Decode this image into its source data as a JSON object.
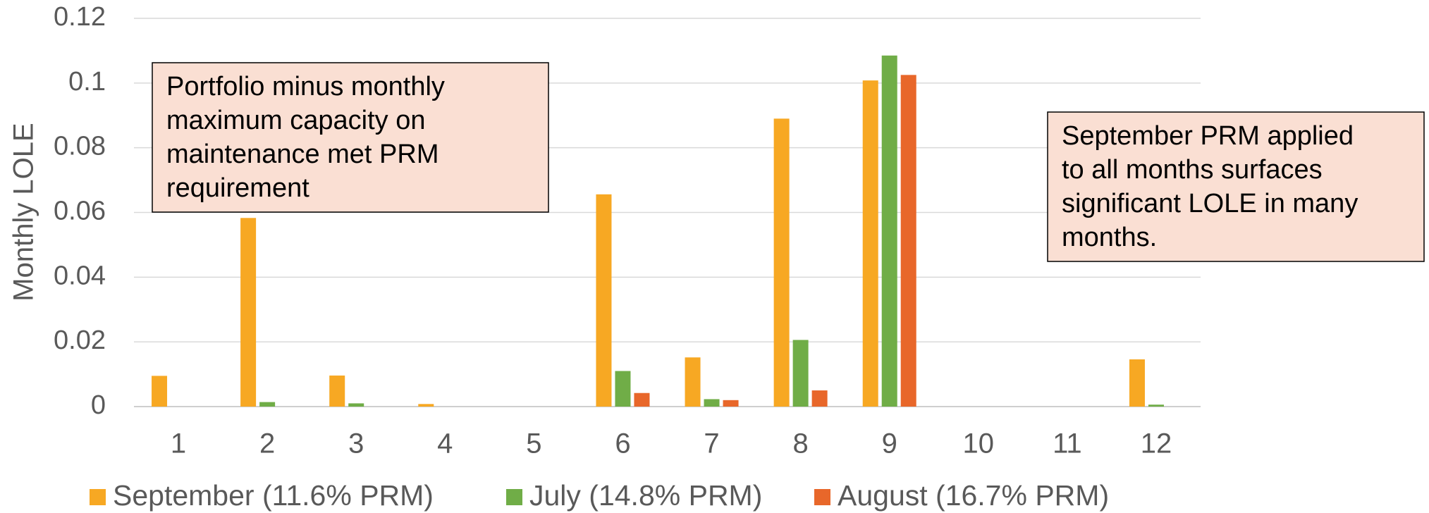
{
  "chart_data": {
    "type": "bar",
    "y_label": "Monthly LOLE",
    "categories": [
      "1",
      "2",
      "3",
      "4",
      "5",
      "6",
      "7",
      "8",
      "9",
      "10",
      "11",
      "12"
    ],
    "series": [
      {
        "name": "September (11.6% PRM)",
        "color": "#f7a823",
        "values": [
          0.0095,
          0.0583,
          0.0096,
          0.0008,
          0,
          0.0656,
          0.0152,
          0.089,
          0.1008,
          0,
          0,
          0.0146
        ]
      },
      {
        "name": "July (14.8% PRM)",
        "color": "#70ad47",
        "values": [
          0,
          0.0014,
          0.001,
          0,
          0,
          0.011,
          0.0023,
          0.0206,
          0.1085,
          0,
          0,
          0.0006
        ]
      },
      {
        "name": "August (16.7% PRM)",
        "color": "#e8672a",
        "values": [
          0,
          0,
          0,
          0,
          0,
          0.0042,
          0.002,
          0.005,
          0.1025,
          0,
          0,
          0
        ]
      }
    ],
    "ylim": [
      0,
      0.12
    ],
    "yticks": [
      0,
      0.02,
      0.04,
      0.06,
      0.08,
      0.1,
      0.12
    ],
    "grid": true,
    "legend": "bottom",
    "annotations": [
      {
        "lines": [
          "Portfolio minus monthly",
          "maximum capacity on",
          "maintenance met PRM",
          "requirement"
        ]
      },
      {
        "lines": [
          "September PRM applied",
          "to all months surfaces",
          "significant LOLE in many",
          "months."
        ]
      }
    ]
  }
}
